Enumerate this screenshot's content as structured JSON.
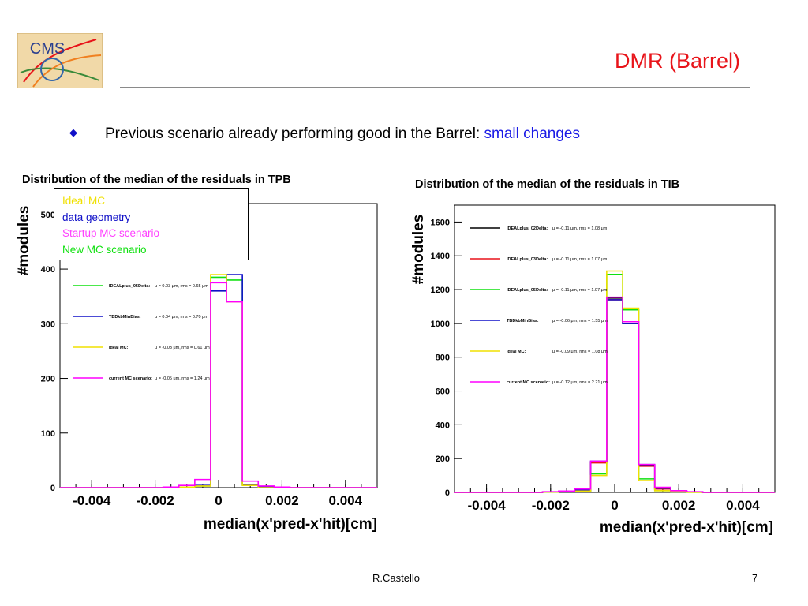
{
  "slide": {
    "logo_text": "CMS",
    "title": "DMR (Barrel)",
    "bullet_text": "Previous scenario already performing good in the Barrel: ",
    "bullet_highlight": "small changes",
    "footer_author": "R.Castello",
    "footer_page": "7",
    "colors": {
      "title": "#e8141a",
      "highlight": "#1a1ae6",
      "bullet": "#1010c8"
    }
  },
  "overlay_legend": [
    {
      "label": "Ideal MC",
      "color": "#f0e000"
    },
    {
      "label": "data geometry",
      "color": "#1010c8"
    },
    {
      "label": "Startup MC scenario",
      "color": "#ff40ff"
    },
    {
      "label": "New MC scenario",
      "color": "#10e010"
    }
  ],
  "chart_data": [
    {
      "type": "line",
      "title": "Distribution of the median of the residuals in TPB",
      "xlabel": "median(x'pred-x'hit)[cm]",
      "ylabel": "#modules",
      "xlim": [
        -0.005,
        0.005
      ],
      "ylim": [
        0,
        520
      ],
      "yticks": [
        0,
        100,
        200,
        300,
        400,
        500
      ],
      "yticks_labels": [
        "0",
        "100",
        "200",
        "300",
        "400",
        "500"
      ],
      "xticks": [
        -0.004,
        -0.002,
        0,
        0.002,
        0.004
      ],
      "xticks_labels": [
        "-0.004",
        "-0.002",
        "0",
        "0.002",
        "0.004"
      ],
      "x": [
        -0.0025,
        -0.002,
        -0.0015,
        -0.001,
        -0.0005,
        0.0,
        0.0005,
        0.001,
        0.0015,
        0.002,
        0.0025
      ],
      "series": [
        {
          "name": "IDEALplus_05Delta:",
          "stats": "μ = 0.03 μm, rms = 0.65 μm",
          "color": "#10e010",
          "values": [
            0,
            0,
            0,
            1,
            3,
            385,
            380,
            5,
            1,
            0,
            0
          ]
        },
        {
          "name": "TBDkbMinBias:",
          "stats": "μ = 0.04 μm, rms = 0.70 μm",
          "color": "#1010c8",
          "values": [
            0,
            0,
            0,
            1,
            4,
            360,
            390,
            6,
            1,
            0,
            0
          ]
        },
        {
          "name": "ideal MC:",
          "stats": "μ = -0.03 μm, rms = 0.61 μm",
          "color": "#f0e000",
          "values": [
            0,
            0,
            0,
            1,
            3,
            390,
            340,
            4,
            0,
            0,
            0
          ]
        },
        {
          "name": "current MC scenario:",
          "stats": "μ = -0.05 μm, rms = 1.24 μm",
          "color": "#ff00ff",
          "values": [
            0,
            0,
            1,
            4,
            15,
            375,
            340,
            12,
            3,
            1,
            0
          ]
        }
      ],
      "legend": "inside left"
    },
    {
      "type": "line",
      "title": "Distribution of the median of the residuals in TIB",
      "xlabel": "median(x'pred-x'hit)[cm]",
      "ylabel": "#modules",
      "xlim": [
        -0.005,
        0.005
      ],
      "ylim": [
        0,
        1700
      ],
      "yticks": [
        0,
        200,
        400,
        600,
        800,
        1000,
        1200,
        1400,
        1600
      ],
      "yticks_labels": [
        "0",
        "200",
        "400",
        "600",
        "800",
        "1000",
        "1200",
        "1400",
        "1600"
      ],
      "xticks": [
        -0.004,
        -0.002,
        0,
        0.002,
        0.004
      ],
      "xticks_labels": [
        "-0.004",
        "-0.002",
        "0",
        "0.002",
        "0.004"
      ],
      "x": [
        -0.0025,
        -0.002,
        -0.0015,
        -0.001,
        -0.0005,
        0.0,
        0.0005,
        0.001,
        0.0015,
        0.002,
        0.0025
      ],
      "series": [
        {
          "name": "IDEALplus_02Delta:",
          "stats": "μ = -0.11 μm, rms = 1.08 μm",
          "color": "#000000",
          "values": [
            0,
            2,
            4,
            10,
            180,
            1150,
            1000,
            160,
            20,
            5,
            2
          ]
        },
        {
          "name": "IDEALplus_03Delta:",
          "stats": "μ = -0.11 μm, rms = 1.07 μm",
          "color": "#e8141a",
          "values": [
            0,
            2,
            4,
            10,
            175,
            1140,
            1010,
            155,
            20,
            5,
            2
          ]
        },
        {
          "name": "IDEALplus_05Delta:",
          "stats": "μ = -0.11 μm, rms = 1.07 μm",
          "color": "#10e010",
          "values": [
            0,
            2,
            4,
            8,
            110,
            1290,
            1080,
            80,
            10,
            3,
            1
          ]
        },
        {
          "name": "TBDkbMinBias:",
          "stats": "μ = -0.06 μm, rms = 1.55 μm",
          "color": "#1010c8",
          "values": [
            0,
            3,
            6,
            14,
            185,
            1140,
            1000,
            165,
            25,
            8,
            3
          ]
        },
        {
          "name": "ideal MC:",
          "stats": "μ = -0.09 μm, rms = 1.08 μm",
          "color": "#f0e000",
          "values": [
            0,
            2,
            4,
            8,
            100,
            1310,
            1090,
            70,
            10,
            3,
            1
          ]
        },
        {
          "name": "current MC scenario:",
          "stats": "μ = -0.12 μm, rms = 2.21 μm",
          "color": "#ff00ff",
          "values": [
            0,
            4,
            8,
            20,
            185,
            1155,
            1010,
            165,
            30,
            10,
            4
          ]
        }
      ],
      "legend": "inside left"
    }
  ]
}
